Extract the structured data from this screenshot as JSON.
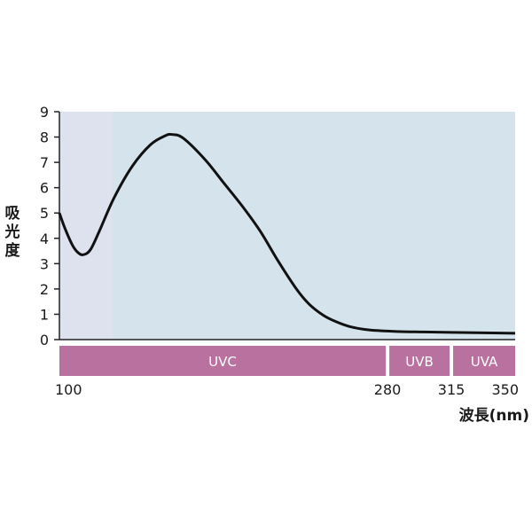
{
  "chart_data": {
    "type": "line",
    "ylabel_chars": [
      "吸",
      "光",
      "度"
    ],
    "xlabel": "波長(nm)",
    "ylim": [
      0,
      9
    ],
    "y_ticks": [
      "0",
      "1",
      "2",
      "3",
      "4",
      "5",
      "6",
      "7",
      "8",
      "9"
    ],
    "x_axis_ticks": [
      "100",
      "280",
      "315",
      "350"
    ],
    "bands": [
      {
        "label": "UVC",
        "from": 100,
        "to": 280
      },
      {
        "label": "UVB",
        "from": 280,
        "to": 315
      },
      {
        "label": "UVA",
        "from": 315,
        "to": 350
      }
    ],
    "series": [
      {
        "points": [
          [
            100,
            5.0
          ],
          [
            103,
            4.4
          ],
          [
            107,
            3.75
          ],
          [
            110,
            3.45
          ],
          [
            113,
            3.35
          ],
          [
            117,
            3.55
          ],
          [
            122,
            4.3
          ],
          [
            130,
            5.6
          ],
          [
            140,
            6.85
          ],
          [
            150,
            7.7
          ],
          [
            158,
            8.05
          ],
          [
            162,
            8.1
          ],
          [
            168,
            7.95
          ],
          [
            180,
            7.1
          ],
          [
            190,
            6.2
          ],
          [
            200,
            5.3
          ],
          [
            210,
            4.3
          ],
          [
            220,
            3.1
          ],
          [
            230,
            2.0
          ],
          [
            237,
            1.4
          ],
          [
            245,
            0.95
          ],
          [
            252,
            0.7
          ],
          [
            260,
            0.5
          ],
          [
            270,
            0.38
          ],
          [
            285,
            0.32
          ],
          [
            300,
            0.3
          ],
          [
            320,
            0.28
          ],
          [
            350,
            0.25
          ]
        ]
      }
    ]
  },
  "colors": {
    "plot_bg": "#d5e4ec",
    "plot_bg_left": "#dde2ee",
    "band": "#b9719f",
    "line": "#111111",
    "axis": "#222222"
  }
}
